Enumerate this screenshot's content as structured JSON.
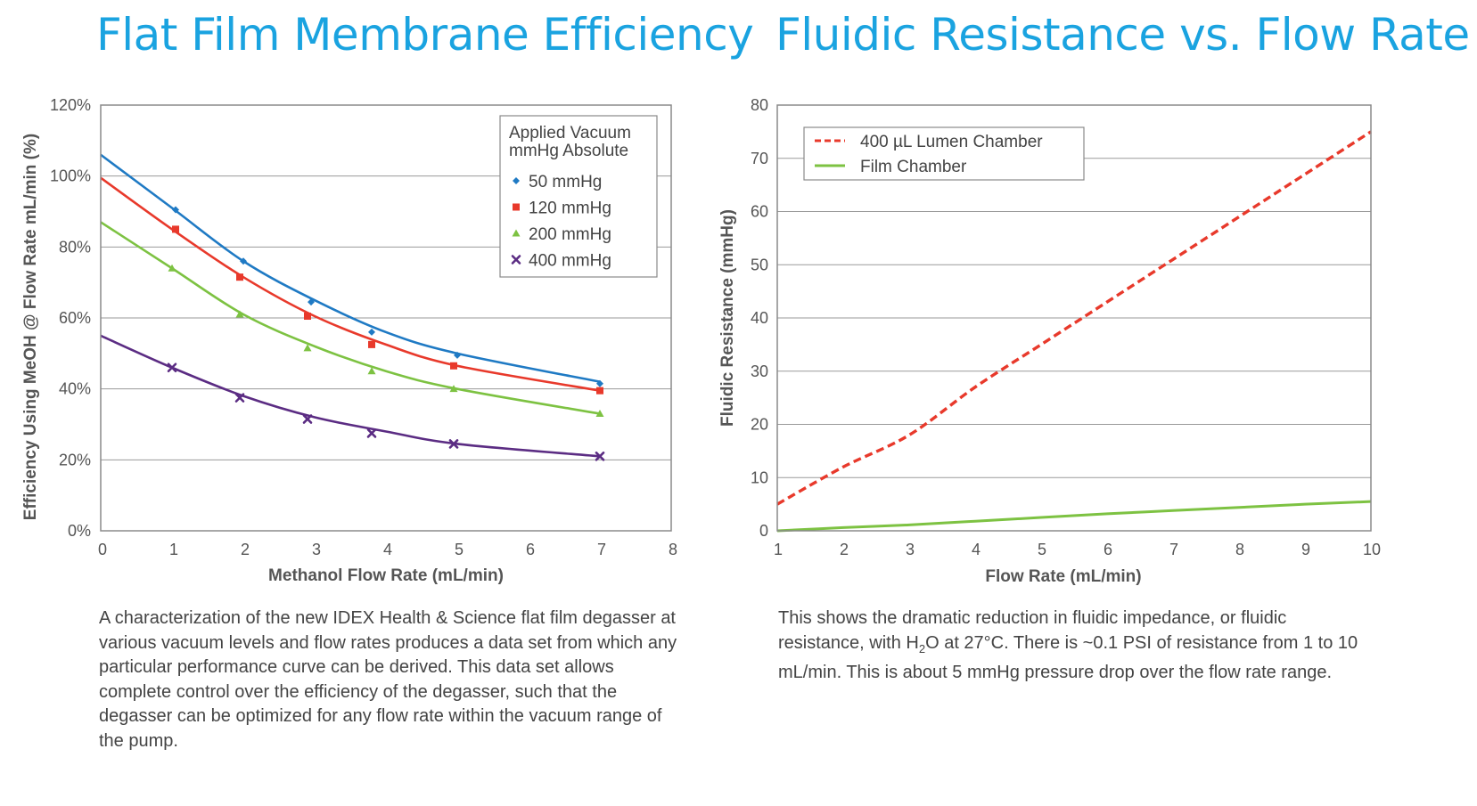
{
  "left_chart": {
    "title": "Flat Film Membrane Efficiency",
    "caption": "A characterization of the new IDEX Health & Science flat film degasser at various vacuum levels and flow rates produces a data set from which any particular performance curve can be derived. This data set allows complete control over the efficiency of the degasser, such that the degasser can be optimized for any flow rate within the vacuum range of the pump.",
    "legend_title_line1": "Applied Vacuum",
    "legend_title_line2": "mmHg Absolute"
  },
  "right_chart": {
    "title": "Fluidic Resistance vs. Flow Rate",
    "caption_part1": "This shows the dramatic reduction in fluidic impedance, or fluidic resistance, with H",
    "caption_sub": "2",
    "caption_part2": "O at 27°C. There is ~0.1 PSI of resistance from 1 to 10 mL/min. This is about 5 mmHg pressure drop over the flow rate range."
  },
  "chart_data": [
    {
      "type": "scatter",
      "title": "Flat Film Membrane Efficiency",
      "xlabel": "Methanol Flow Rate (mL/min)",
      "ylabel": "Efficiency Using MeOH @ Flow Rate mL/min (%)",
      "xlim": [
        0,
        8
      ],
      "ylim": [
        0,
        120
      ],
      "xticks": [
        "0",
        "1",
        "2",
        "3",
        "4",
        "5",
        "6",
        "7",
        "8"
      ],
      "yticks": [
        "0%",
        "20%",
        "40%",
        "60%",
        "80%",
        "100%",
        "120%"
      ],
      "grid": "horizontal",
      "legend_position": "top-right",
      "trendline": "polynomial",
      "series": [
        {
          "name": "50 mmHg",
          "color": "#1f7ac4",
          "marker": "diamond",
          "x": [
            0,
            1,
            2,
            3,
            4,
            5,
            7
          ],
          "y": [
            106,
            91,
            76,
            65,
            56,
            50,
            42
          ],
          "points": [
            {
              "x": 1.05,
              "y": 90.5
            },
            {
              "x": 2.0,
              "y": 76
            },
            {
              "x": 2.95,
              "y": 64.5
            },
            {
              "x": 3.8,
              "y": 56
            },
            {
              "x": 5.0,
              "y": 49.5
            },
            {
              "x": 7.0,
              "y": 41.5
            }
          ]
        },
        {
          "name": "120 mmHg",
          "color": "#e8392b",
          "marker": "square",
          "x": [
            0,
            1,
            2,
            3,
            4,
            5,
            7
          ],
          "y": [
            99.5,
            85,
            71.5,
            60.5,
            52.5,
            46.5,
            39.5
          ],
          "points": [
            {
              "x": 1.05,
              "y": 85
            },
            {
              "x": 1.95,
              "y": 71.5
            },
            {
              "x": 2.9,
              "y": 60.5
            },
            {
              "x": 3.8,
              "y": 52.5
            },
            {
              "x": 4.95,
              "y": 46.5
            },
            {
              "x": 7.0,
              "y": 39.5
            }
          ]
        },
        {
          "name": "200 mmHg",
          "color": "#7dc242",
          "marker": "triangle",
          "x": [
            0,
            1,
            2,
            3,
            4,
            5,
            7
          ],
          "y": [
            87,
            74,
            61,
            52,
            45,
            40,
            33
          ],
          "points": [
            {
              "x": 1.0,
              "y": 74
            },
            {
              "x": 1.95,
              "y": 61
            },
            {
              "x": 2.9,
              "y": 51.5
            },
            {
              "x": 3.8,
              "y": 45
            },
            {
              "x": 4.95,
              "y": 40
            },
            {
              "x": 7.0,
              "y": 33
            }
          ]
        },
        {
          "name": "400 mmHg",
          "color": "#5b2c83",
          "marker": "x",
          "x": [
            0,
            1,
            2,
            3,
            4,
            5,
            7
          ],
          "y": [
            55,
            46,
            38,
            32,
            28,
            24.5,
            21
          ],
          "points": [
            {
              "x": 1.0,
              "y": 46
            },
            {
              "x": 1.95,
              "y": 37.5
            },
            {
              "x": 2.9,
              "y": 31.5
            },
            {
              "x": 3.8,
              "y": 27.5
            },
            {
              "x": 4.95,
              "y": 24.5
            },
            {
              "x": 7.0,
              "y": 21
            }
          ]
        }
      ]
    },
    {
      "type": "line",
      "title": "Fluidic Resistance vs. Flow Rate",
      "xlabel": "Flow Rate (mL/min)",
      "ylabel": "Fluidic Resistance (mmHg)",
      "xlim": [
        1,
        10
      ],
      "ylim": [
        0,
        80
      ],
      "xticks": [
        "1",
        "2",
        "3",
        "4",
        "5",
        "6",
        "7",
        "8",
        "9",
        "10"
      ],
      "yticks": [
        "0",
        "10",
        "20",
        "30",
        "40",
        "50",
        "60",
        "70",
        "80"
      ],
      "grid": "horizontal",
      "legend_position": "top-left",
      "series": [
        {
          "name": "400 µL Lumen Chamber",
          "color": "#e8392b",
          "style": "dashed",
          "x": [
            1,
            2,
            3,
            4,
            5,
            6,
            7,
            8,
            9,
            10
          ],
          "y": [
            5,
            12,
            18,
            27,
            35,
            43,
            51,
            59,
            67,
            75
          ]
        },
        {
          "name": "Film Chamber",
          "color": "#7dc242",
          "style": "solid",
          "x": [
            1,
            2,
            3,
            4,
            5,
            6,
            7,
            8,
            9,
            10
          ],
          "y": [
            0,
            0.6,
            1.1,
            1.8,
            2.5,
            3.2,
            3.8,
            4.4,
            5.0,
            5.5
          ]
        }
      ]
    }
  ]
}
